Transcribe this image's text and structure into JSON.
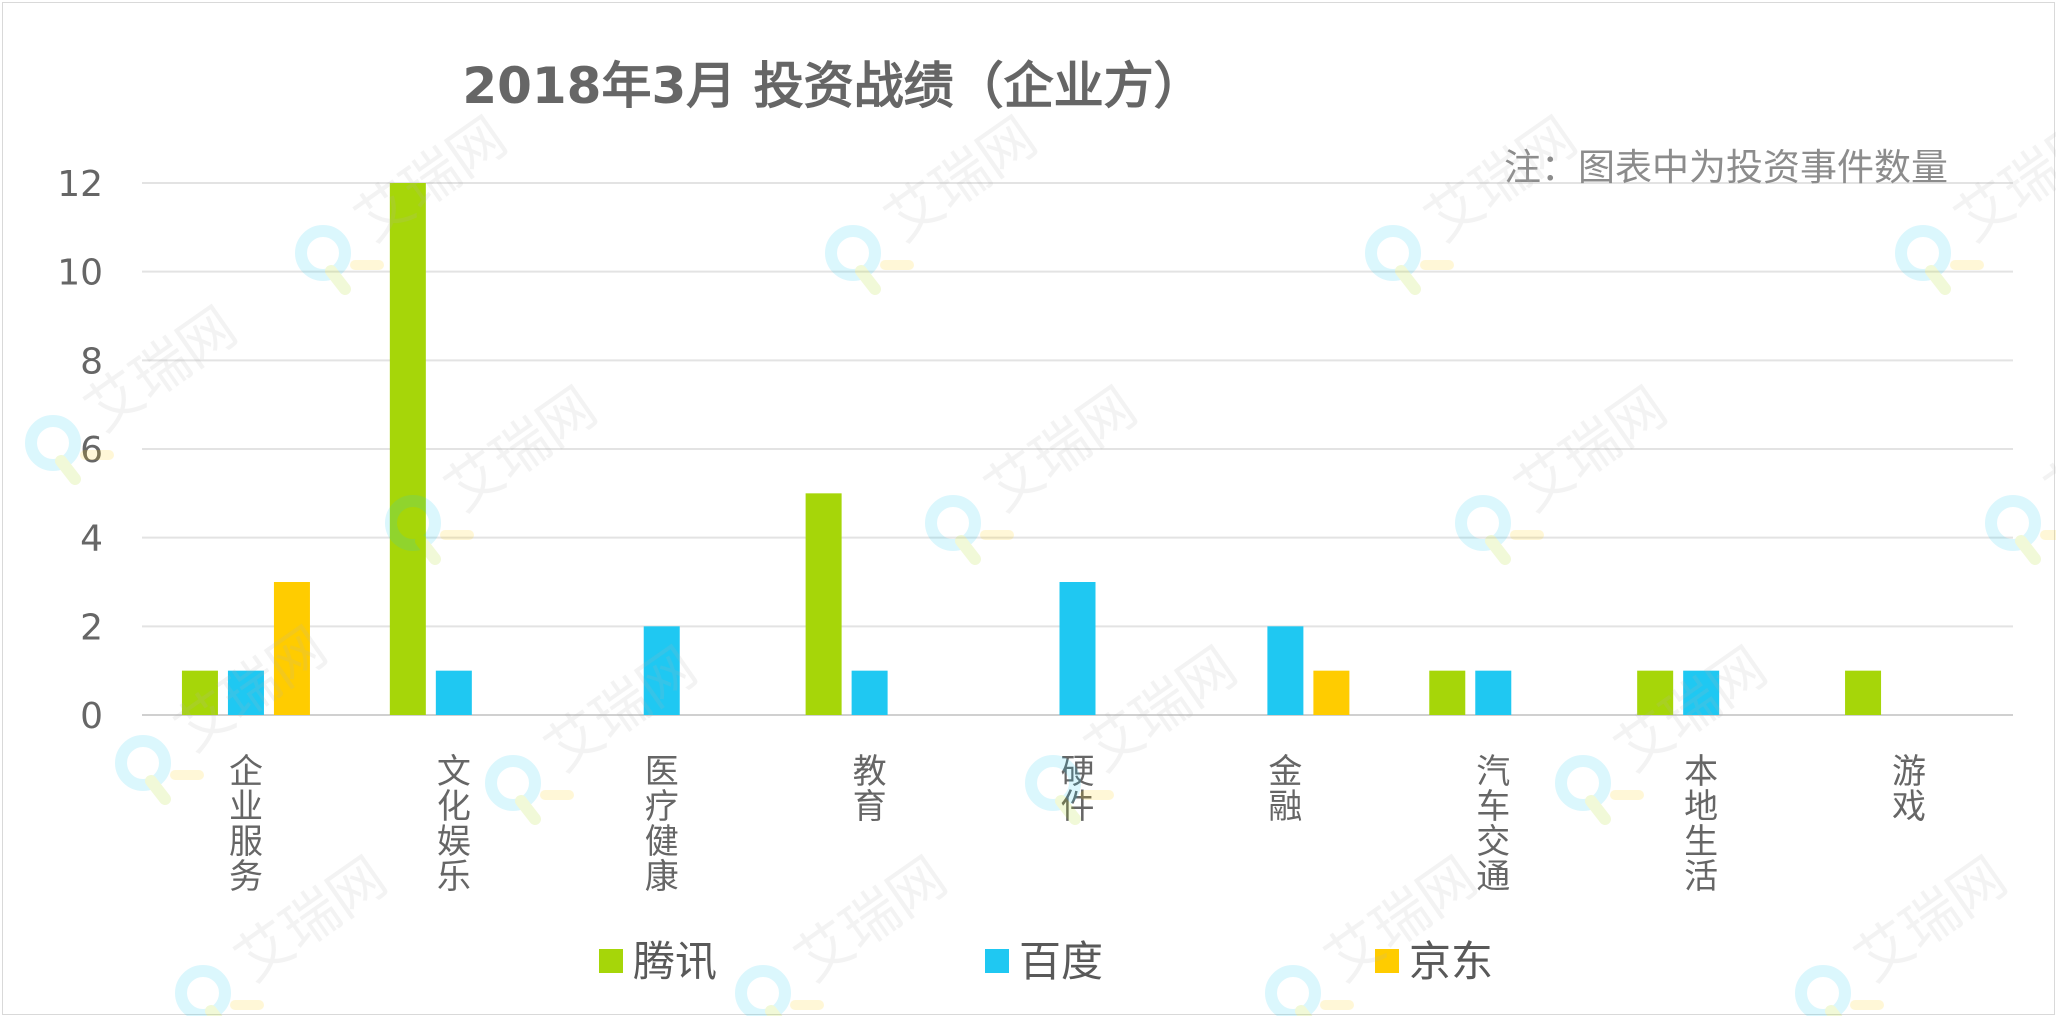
{
  "chart_data": {
    "type": "bar",
    "title": "2018年3月 投资战绩（企业方）",
    "note": "注：图表中为投资事件数量",
    "categories": [
      "企业服务",
      "文化娱乐",
      "医疗健康",
      "教育",
      "硬件",
      "金融",
      "汽车交通",
      "本地生活",
      "游戏"
    ],
    "series": [
      {
        "name": "腾讯",
        "color": "#a6d609",
        "values": [
          1,
          12,
          0,
          5,
          0,
          0,
          1,
          1,
          1
        ]
      },
      {
        "name": "百度",
        "color": "#1fc8f2",
        "values": [
          1,
          1,
          2,
          1,
          3,
          2,
          1,
          1,
          0
        ]
      },
      {
        "name": "京东",
        "color": "#ffcc00",
        "values": [
          3,
          0,
          0,
          0,
          0,
          1,
          0,
          0,
          0
        ]
      }
    ],
    "yticks": [
      0,
      2,
      4,
      6,
      8,
      10,
      12
    ],
    "ylim": [
      0,
      12
    ],
    "grid": true,
    "legend_position": "bottom",
    "xlabel": "",
    "ylabel": ""
  },
  "watermark": {
    "text": "艾瑞网"
  }
}
